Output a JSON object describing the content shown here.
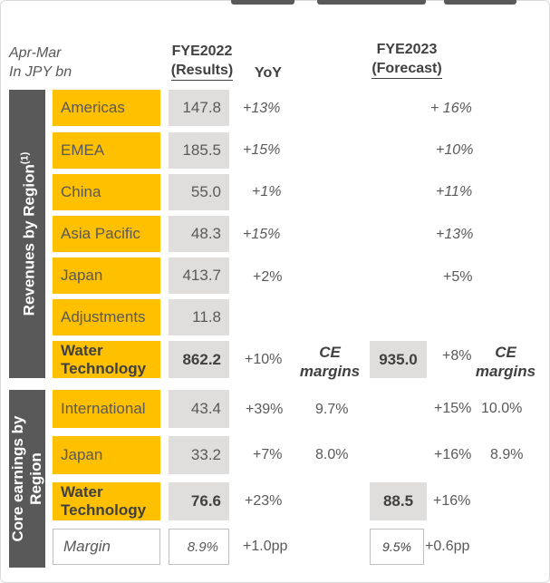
{
  "header": {
    "unit_line1": "Apr-Mar",
    "unit_line2": "In JPY bn",
    "col_results_line1": "FYE2022",
    "col_results_line2": "(Results)",
    "col_yoy": "YoY",
    "col_forecast_line1": "FYE2023",
    "col_forecast_line2": "(Forecast)"
  },
  "revenues": {
    "band_label": "Revenues by Region",
    "band_footnote": "(1)",
    "rows": [
      {
        "label": "Americas",
        "value": "147.8",
        "yoy": "+13%",
        "forecast_yoy": "+ 16%"
      },
      {
        "label": "EMEA",
        "value": "185.5",
        "yoy": "+15%",
        "forecast_yoy": "+10%"
      },
      {
        "label": "China",
        "value": "55.0",
        "yoy": "+1%",
        "forecast_yoy": "+11%"
      },
      {
        "label": "Asia Pacific",
        "value": "48.3",
        "yoy": "+15%",
        "forecast_yoy": "+13%"
      },
      {
        "label": "Japan",
        "value": "413.7",
        "yoy": "+2%",
        "forecast_yoy": "+5%"
      },
      {
        "label": "Adjustments",
        "value": "11.8",
        "yoy": "",
        "forecast_yoy": ""
      }
    ],
    "total": {
      "label_line1": "Water",
      "label_line2": "Technology",
      "value": "862.2",
      "yoy": "+10%",
      "ce_margins_line1": "CE",
      "ce_margins_line2": "margins",
      "forecast_value": "935.0",
      "forecast_yoy": "+8%",
      "forecast_ce_line1": "CE",
      "forecast_ce_line2": "margins"
    }
  },
  "core_earnings": {
    "band_label_line1": "Core earnings by",
    "band_label_line2": "Region",
    "rows": [
      {
        "label": "International",
        "value": "43.4",
        "yoy": "+39%",
        "margin": "9.7%",
        "forecast_yoy": "+15%",
        "forecast_margin": "10.0%"
      },
      {
        "label": "Japan",
        "value": "33.2",
        "yoy": "+7%",
        "margin": "8.0%",
        "forecast_yoy": "+16%",
        "forecast_margin": "8.9%"
      }
    ],
    "total": {
      "label_line1": "Water",
      "label_line2": "Technology",
      "value": "76.6",
      "yoy": "+23%",
      "forecast_value": "88.5",
      "forecast_yoy": "+16%"
    },
    "margin_row": {
      "label": "Margin",
      "value": "8.9%",
      "yoy": "+1.0pp",
      "forecast_value": "9.5%",
      "forecast_yoy": "+0.6pp"
    }
  }
}
